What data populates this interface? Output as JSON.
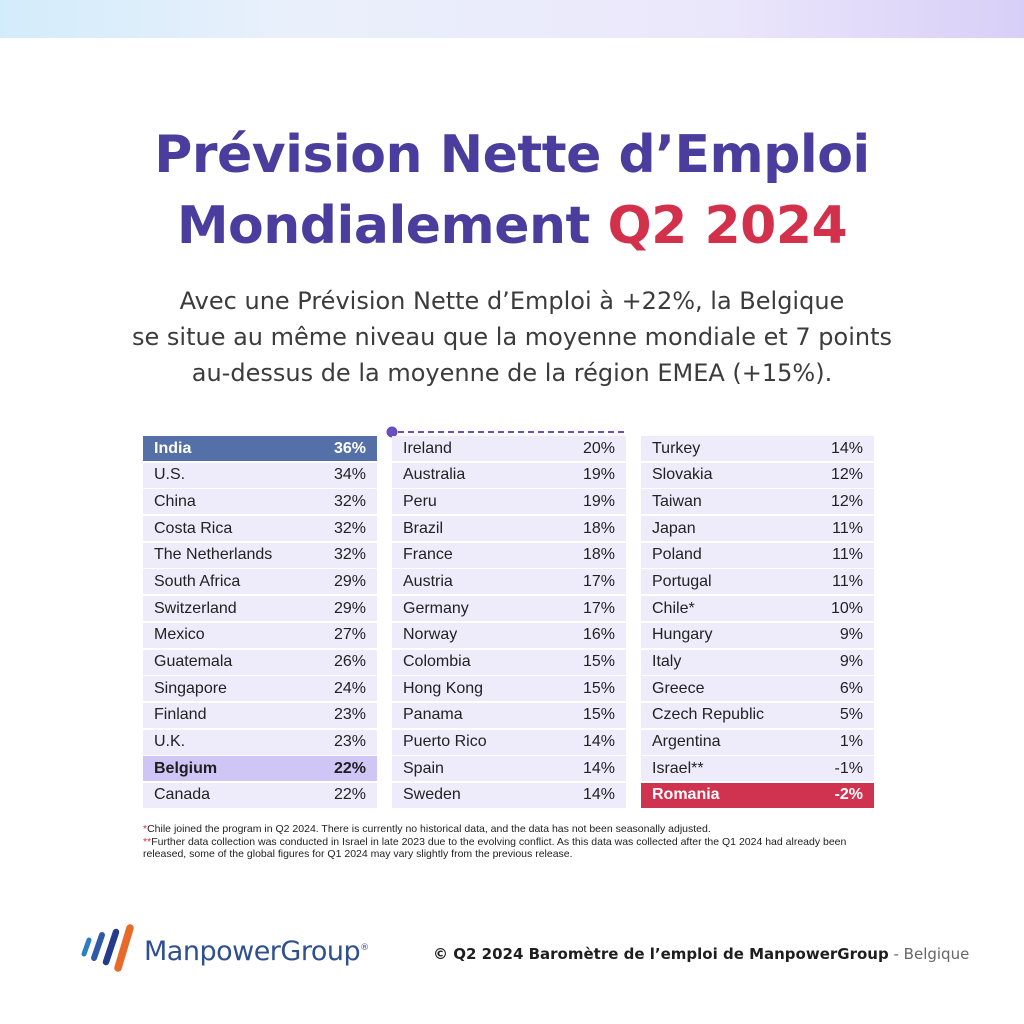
{
  "title": {
    "line1": "Prévision Nette d’Emploi",
    "line2_main": "Mondialement",
    "line2_accent": "Q2 2024"
  },
  "subtitle": [
    "Avec une Prévision Nette d’Emploi à +22%, la Belgique",
    "se situe au même niveau que la moyenne mondiale et 7 points",
    "au-dessus de la moyenne de la région EMEA (+15%)."
  ],
  "colors": {
    "title": "#4b3d9e",
    "accent": "#d2304b",
    "row_bg": "#eeebfb",
    "highlight_top": "#5570a8",
    "highlight_country": "#cfc6f6",
    "highlight_bottom": "#cf3350"
  },
  "table": {
    "columns": [
      [
        {
          "country": "India",
          "value": "36%",
          "highlight": "top"
        },
        {
          "country": "U.S.",
          "value": "34%"
        },
        {
          "country": "China",
          "value": "32%"
        },
        {
          "country": "Costa Rica",
          "value": "32%"
        },
        {
          "country": "The Netherlands",
          "value": "32%"
        },
        {
          "country": "South Africa",
          "value": "29%"
        },
        {
          "country": "Switzerland",
          "value": "29%"
        },
        {
          "country": "Mexico",
          "value": "27%"
        },
        {
          "country": "Guatemala",
          "value": "26%"
        },
        {
          "country": "Singapore",
          "value": "24%"
        },
        {
          "country": "Finland",
          "value": "23%"
        },
        {
          "country": "U.K.",
          "value": "23%"
        },
        {
          "country": "Belgium",
          "value": "22%",
          "highlight": "country"
        },
        {
          "country": "Canada",
          "value": "22%"
        }
      ],
      [
        {
          "country": "Ireland",
          "value": "20%"
        },
        {
          "country": "Australia",
          "value": "19%"
        },
        {
          "country": "Peru",
          "value": "19%"
        },
        {
          "country": "Brazil",
          "value": "18%"
        },
        {
          "country": "France",
          "value": "18%"
        },
        {
          "country": "Austria",
          "value": "17%"
        },
        {
          "country": "Germany",
          "value": "17%"
        },
        {
          "country": "Norway",
          "value": "16%"
        },
        {
          "country": "Colombia",
          "value": "15%"
        },
        {
          "country": "Hong Kong",
          "value": "15%"
        },
        {
          "country": "Panama",
          "value": "15%"
        },
        {
          "country": "Puerto Rico",
          "value": "14%"
        },
        {
          "country": "Spain",
          "value": "14%"
        },
        {
          "country": "Sweden",
          "value": "14%"
        }
      ],
      [
        {
          "country": "Turkey",
          "value": "14%"
        },
        {
          "country": "Slovakia",
          "value": "12%"
        },
        {
          "country": "Taiwan",
          "value": "12%"
        },
        {
          "country": "Japan",
          "value": "11%"
        },
        {
          "country": "Poland",
          "value": "11%"
        },
        {
          "country": "Portugal",
          "value": "11%"
        },
        {
          "country": "Chile*",
          "value": "10%"
        },
        {
          "country": "Hungary",
          "value": "9%"
        },
        {
          "country": "Italy",
          "value": "9%"
        },
        {
          "country": "Greece",
          "value": "6%"
        },
        {
          "country": "Czech Republic",
          "value": "5%"
        },
        {
          "country": "Argentina",
          "value": "1%"
        },
        {
          "country": "Israel**",
          "value": "-1%"
        },
        {
          "country": "Romania",
          "value": "-2%",
          "highlight": "bottom"
        }
      ]
    ]
  },
  "footnotes": [
    {
      "mark": "*",
      "text": "Chile joined the program in Q2 2024. There is currently no historical data, and the data has not been seasonally adjusted."
    },
    {
      "mark": "**",
      "text": "Further data collection was conducted in Israel in late 2023 due to the evolving conflict. As this data was collected after the Q1 2024 had already been released, some of the global figures for Q1 2024 may vary slightly from the previous release."
    }
  ],
  "footer": {
    "logo_text": "ManpowerGroup",
    "logo_mark": "®",
    "copyright": "© Q2 2024 Baromètre de l’emploi de ManpowerGroup",
    "location": "- Belgique"
  }
}
